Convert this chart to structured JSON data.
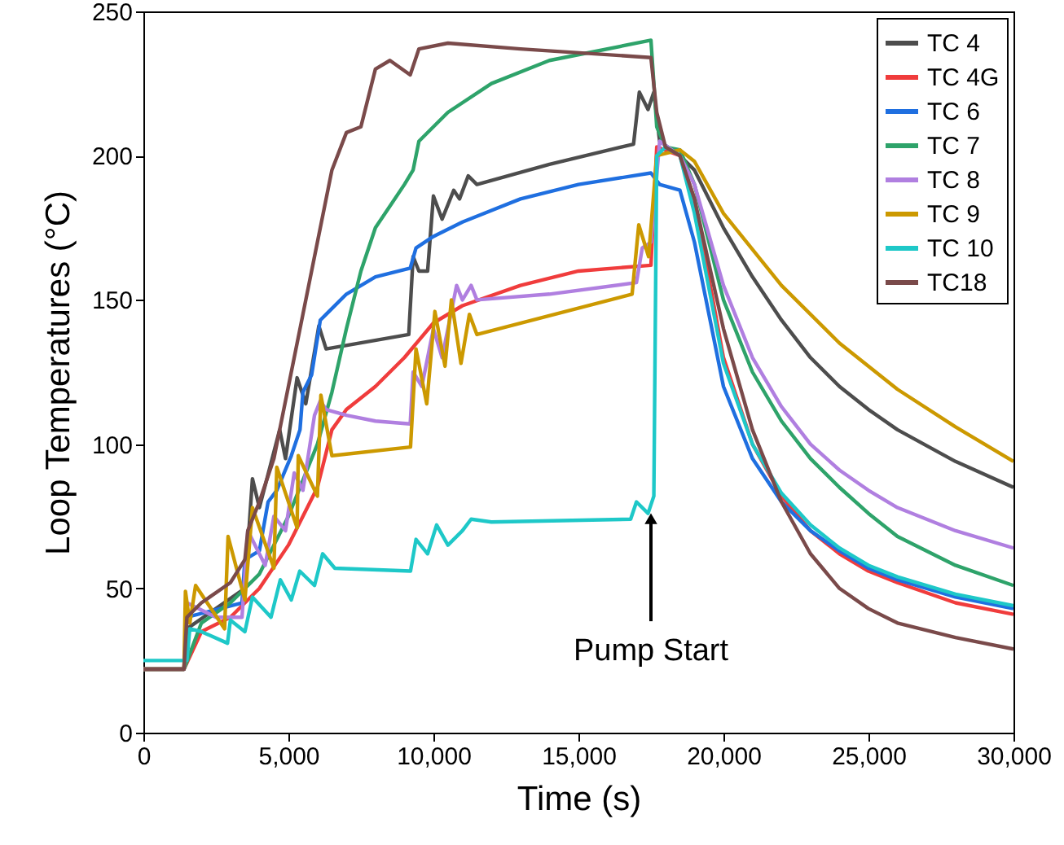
{
  "chart_data": {
    "type": "line",
    "xlabel": "Time (s)",
    "ylabel": "Loop Temperatures (°C)",
    "xlim": [
      0,
      30000
    ],
    "ylim": [
      0,
      250
    ],
    "xticks": [
      {
        "value": 0,
        "label": "0"
      },
      {
        "value": 5000,
        "label": "5,000"
      },
      {
        "value": 10000,
        "label": "10,000"
      },
      {
        "value": 15000,
        "label": "15,000"
      },
      {
        "value": 20000,
        "label": "20,000"
      },
      {
        "value": 25000,
        "label": "25,000"
      },
      {
        "value": 30000,
        "label": "30,000"
      }
    ],
    "yticks": [
      0,
      50,
      100,
      150,
      200,
      250
    ],
    "legend": "top right",
    "annotations": [
      {
        "text": "Pump Start",
        "x": 17500,
        "y": 77
      }
    ],
    "series": [
      {
        "name": "TC 4",
        "color": "#4d4d4d",
        "x": [
          0,
          1400,
          1500,
          2500,
          3500,
          3760,
          4000,
          4700,
          4900,
          5300,
          5600,
          6050,
          6300,
          9150,
          9300,
          9500,
          9800,
          10000,
          10300,
          10700,
          10900,
          11200,
          11500,
          14000,
          16900,
          17100,
          17400,
          17600,
          17800,
          18500,
          19000,
          20000,
          21000,
          22000,
          23000,
          24000,
          25000,
          26000,
          28000,
          30000
        ],
        "values": [
          22,
          22,
          36,
          43,
          50,
          88,
          78,
          105,
          95,
          123,
          114,
          141,
          133,
          138,
          165,
          160,
          160,
          186,
          178,
          188,
          185,
          193,
          190,
          197,
          204,
          222,
          216,
          222,
          205,
          200,
          195,
          175,
          158,
          143,
          130,
          120,
          112,
          105,
          94,
          85
        ]
      },
      {
        "name": "TC 4G",
        "color": "#f03c3c",
        "x": [
          0,
          1400,
          2000,
          3000,
          4000,
          5000,
          6000,
          6500,
          7000,
          8000,
          9000,
          10000,
          11000,
          13000,
          15000,
          17500,
          17700,
          18500,
          19000,
          20000,
          21000,
          22000,
          23000,
          24000,
          25000,
          26000,
          28000,
          30000
        ],
        "values": [
          22,
          22,
          35,
          40,
          50,
          65,
          85,
          105,
          112,
          120,
          130,
          142,
          148,
          155,
          160,
          162,
          203,
          200,
          185,
          130,
          100,
          82,
          70,
          62,
          56,
          52,
          45,
          41
        ]
      },
      {
        "name": "TC 6",
        "color": "#1f6fe0",
        "x": [
          0,
          1400,
          1500,
          3400,
          3500,
          4000,
          4300,
          4600,
          5100,
          5400,
          5500,
          5800,
          6100,
          6300,
          7000,
          8000,
          9200,
          9400,
          10000,
          11000,
          13000,
          15000,
          17500,
          17800,
          18500,
          19000,
          20000,
          21000,
          22000,
          23000,
          24000,
          25000,
          26000,
          28000,
          30000
        ],
        "values": [
          22,
          22,
          40,
          45,
          60,
          63,
          80,
          84,
          96,
          105,
          118,
          124,
          143,
          145,
          152,
          158,
          161,
          168,
          172,
          177,
          185,
          190,
          194,
          190,
          188,
          170,
          120,
          95,
          80,
          70,
          63,
          57,
          53,
          47,
          43
        ]
      },
      {
        "name": "TC 7",
        "color": "#2ea36a",
        "x": [
          0,
          1400,
          2000,
          3000,
          4000,
          5000,
          6000,
          6500,
          7000,
          7500,
          8000,
          9000,
          9300,
          9500,
          10500,
          12000,
          14000,
          17500,
          17700,
          18000,
          18500,
          19000,
          20000,
          21000,
          22000,
          23000,
          24000,
          25000,
          26000,
          28000,
          30000
        ],
        "values": [
          22,
          22,
          38,
          45,
          55,
          75,
          100,
          118,
          140,
          160,
          175,
          190,
          195,
          205,
          215,
          225,
          233,
          240,
          210,
          203,
          202,
          190,
          150,
          125,
          108,
          95,
          85,
          76,
          68,
          58,
          51
        ]
      },
      {
        "name": "TC 8",
        "color": "#b07fe0",
        "x": [
          0,
          1400,
          1500,
          2500,
          3400,
          3600,
          4200,
          4500,
          4900,
          5200,
          5500,
          5900,
          6100,
          6300,
          7000,
          8000,
          9200,
          9300,
          9600,
          10000,
          10300,
          10800,
          11000,
          11300,
          11500,
          14000,
          17000,
          17200,
          17500,
          17800,
          18500,
          19000,
          20000,
          21000,
          22000,
          23000,
          24000,
          25000,
          26000,
          28000,
          30000
        ],
        "values": [
          22,
          22,
          45,
          40,
          40,
          70,
          58,
          75,
          70,
          90,
          84,
          110,
          115,
          112,
          110,
          108,
          107,
          125,
          120,
          140,
          130,
          155,
          150,
          155,
          150,
          152,
          156,
          168,
          170,
          205,
          200,
          190,
          155,
          130,
          113,
          100,
          91,
          84,
          78,
          70,
          64
        ]
      },
      {
        "name": "TC 9",
        "color": "#cc9900",
        "x": [
          0,
          1400,
          1450,
          1600,
          1800,
          2800,
          2920,
          3500,
          3760,
          4500,
          4600,
          5300,
          5340,
          6000,
          6120,
          6500,
          9210,
          9400,
          9770,
          10050,
          10400,
          10620,
          10950,
          11240,
          11500,
          16850,
          17080,
          17420,
          17700,
          18500,
          19000,
          20000,
          22000,
          24000,
          26000,
          28000,
          30000
        ],
        "values": [
          22,
          22,
          49,
          38,
          51,
          36,
          68,
          46,
          78,
          57,
          92,
          71,
          96,
          82,
          117,
          96,
          99,
          133,
          114,
          146,
          127,
          150,
          128,
          145,
          138,
          152,
          176,
          165,
          200,
          202,
          198,
          180,
          155,
          135,
          119,
          106,
          94
        ]
      },
      {
        "name": "TC 10",
        "color": "#1ec8c8",
        "x": [
          0,
          1400,
          1500,
          1600,
          2000,
          2900,
          3000,
          3500,
          3760,
          4400,
          4720,
          5100,
          5390,
          5900,
          6180,
          6600,
          9210,
          9400,
          9800,
          10110,
          10500,
          11000,
          11300,
          12000,
          16800,
          17000,
          17400,
          17600,
          17700,
          18000,
          18500,
          19000,
          20000,
          21000,
          22000,
          23000,
          24000,
          25000,
          26000,
          28000,
          30000
        ],
        "values": [
          25,
          25,
          25,
          36,
          35,
          31,
          39,
          35,
          47,
          40,
          53,
          46,
          56,
          51,
          62,
          57,
          56,
          67,
          62,
          72,
          65,
          70,
          74,
          73,
          74,
          80,
          76,
          82,
          200,
          203,
          200,
          180,
          128,
          100,
          83,
          72,
          64,
          58,
          54,
          48,
          44
        ]
      },
      {
        "name": "TC18",
        "color": "#7a4a4a",
        "x": [
          0,
          1400,
          1500,
          2000,
          3000,
          3500,
          3600,
          4000,
          4500,
          5000,
          5500,
          6000,
          6500,
          7000,
          7500,
          8000,
          8500,
          9200,
          9500,
          10500,
          13000,
          17500,
          17700,
          18000,
          18500,
          19000,
          20000,
          21000,
          22000,
          23000,
          24000,
          25000,
          26000,
          28000,
          30000
        ],
        "values": [
          22,
          22,
          40,
          45,
          52,
          60,
          70,
          80,
          95,
          120,
          145,
          170,
          195,
          208,
          210,
          230,
          233,
          228,
          237,
          239,
          237,
          234,
          215,
          203,
          200,
          185,
          140,
          105,
          80,
          62,
          50,
          43,
          38,
          33,
          29
        ]
      }
    ]
  }
}
